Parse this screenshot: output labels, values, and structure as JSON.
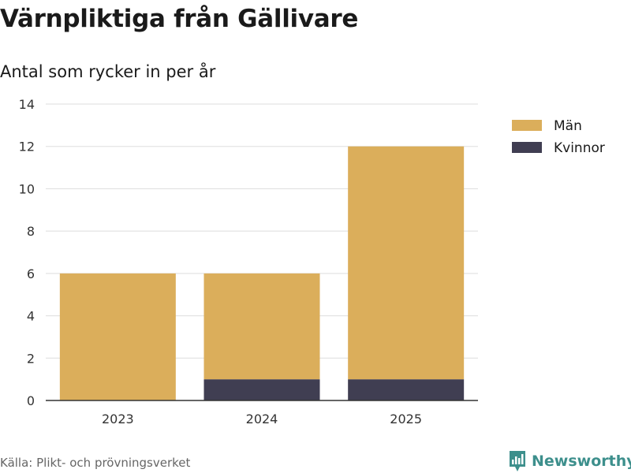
{
  "title": "Värnpliktiga från Gällivare",
  "subtitle": "Antal som rycker in per år",
  "source": "Källa: Plikt- och prövningsverket",
  "brand": "Newsworthy",
  "colors": {
    "men": "#dbae5b",
    "women": "#403e52",
    "grid": "#dddddd",
    "axis": "#333333",
    "brand": "#3d8f8c"
  },
  "chart_data": {
    "type": "bar",
    "stacked": true,
    "categories": [
      "2023",
      "2024",
      "2025"
    ],
    "series": [
      {
        "name": "Kvinnor",
        "values": [
          0,
          1,
          1
        ]
      },
      {
        "name": "Män",
        "values": [
          6,
          5,
          11
        ]
      }
    ],
    "legend": [
      "Män",
      "Kvinnor"
    ],
    "ylim": [
      0,
      14
    ],
    "yticks": [
      0,
      2,
      4,
      6,
      8,
      10,
      12,
      14
    ],
    "grid": true,
    "legend_position": "right"
  }
}
